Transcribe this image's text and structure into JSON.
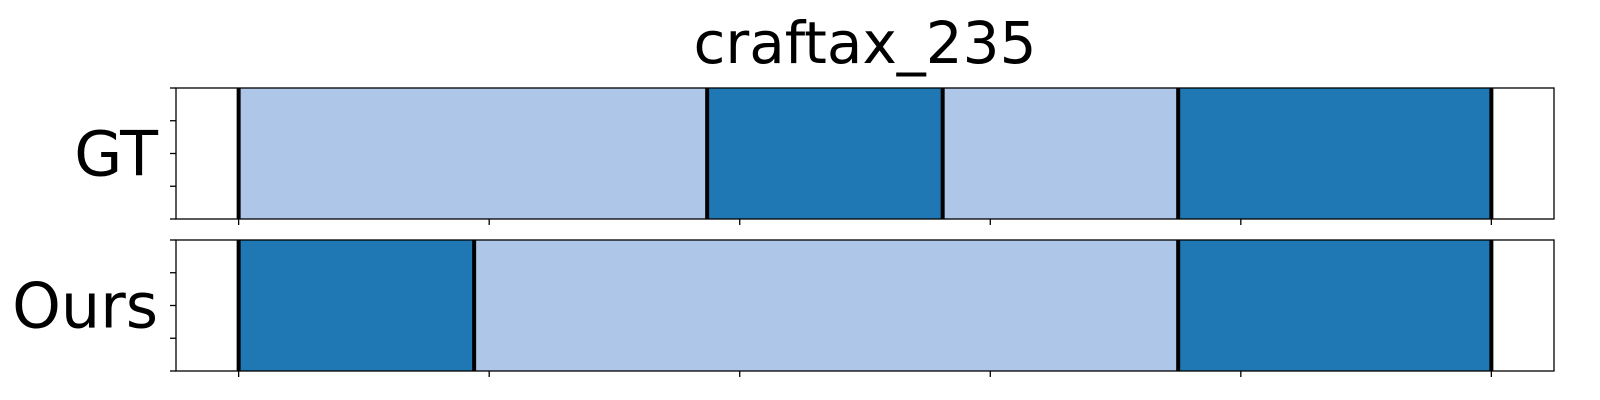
{
  "chart_data": {
    "type": "segmentation-timeline",
    "title": "craftax_235",
    "x_range": [
      -0.25,
      5.25
    ],
    "x_ticks": [
      0,
      1,
      2,
      3,
      4,
      5
    ],
    "rows": [
      {
        "label": "GT",
        "segments": [
          {
            "start": 0.0,
            "end": 1.87,
            "class": "light"
          },
          {
            "start": 1.87,
            "end": 2.81,
            "class": "dark"
          },
          {
            "start": 2.81,
            "end": 3.75,
            "class": "light"
          },
          {
            "start": 3.75,
            "end": 5.0,
            "class": "dark"
          }
        ],
        "boundaries": [
          0.0,
          1.87,
          2.81,
          3.75,
          5.0
        ]
      },
      {
        "label": "Ours",
        "segments": [
          {
            "start": 0.0,
            "end": 0.94,
            "class": "dark"
          },
          {
            "start": 0.94,
            "end": 3.75,
            "class": "light"
          },
          {
            "start": 3.75,
            "end": 5.0,
            "class": "dark"
          }
        ],
        "boundaries": [
          0.0,
          0.94,
          3.75,
          5.0
        ]
      }
    ],
    "colors": {
      "light": "#aec7e8",
      "dark": "#1f77b4",
      "boundary": "#000000"
    },
    "grid": false,
    "legend": "none"
  }
}
